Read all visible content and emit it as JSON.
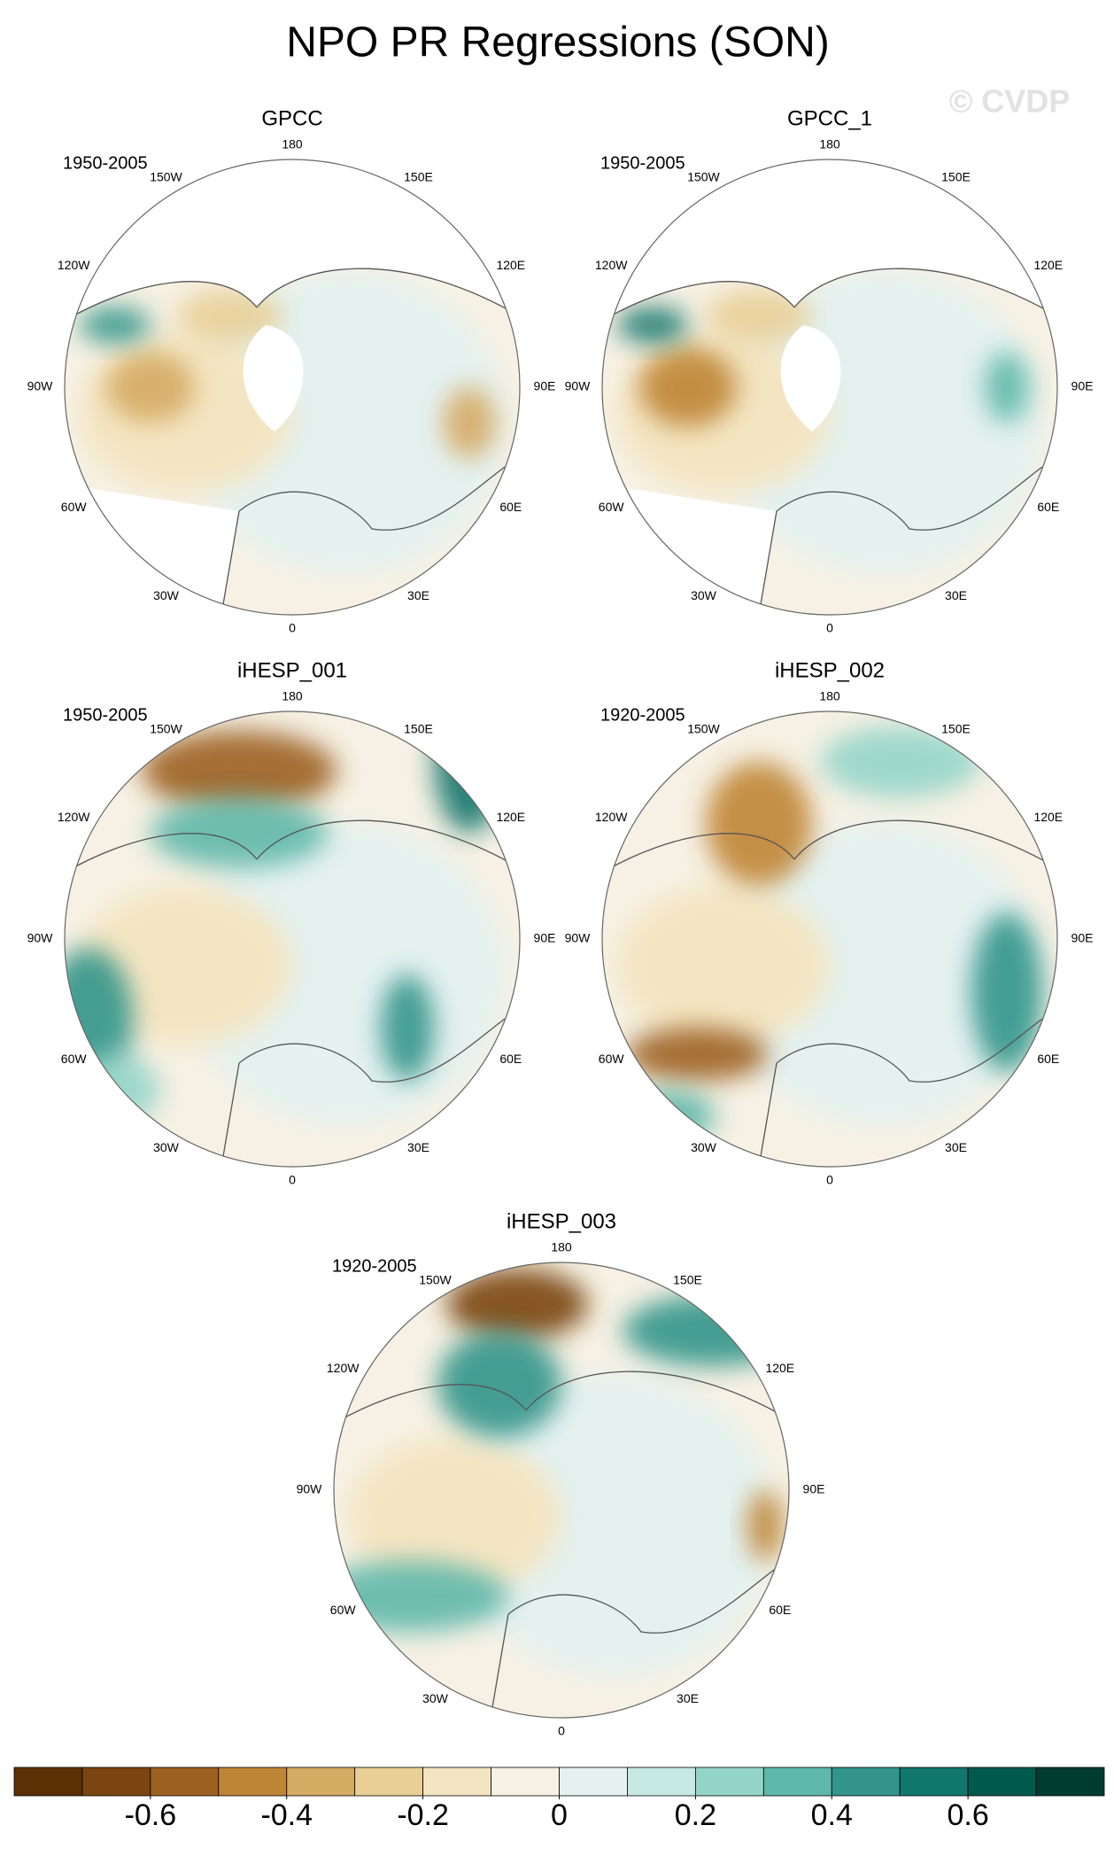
{
  "title": "NPO PR Regressions (SON)",
  "watermark": "© CVDP",
  "lon_labels": [
    "180",
    "150E",
    "120E",
    "90E",
    "60E",
    "30E",
    "0",
    "30W",
    "60W",
    "90W",
    "120W",
    "150W"
  ],
  "panels": [
    {
      "title": "GPCC",
      "period": "1950-2005"
    },
    {
      "title": "GPCC_1",
      "period": "1950-2005"
    },
    {
      "title": "iHESP_001",
      "period": "1950-2005"
    },
    {
      "title": "iHESP_002",
      "period": "1920-2005"
    },
    {
      "title": "iHESP_003",
      "period": "1920-2005"
    }
  ],
  "colorbar": {
    "xlim": [
      -0.8,
      0.8
    ],
    "colors": [
      "#5a3005",
      "#7a4510",
      "#9c6020",
      "#bf8536",
      "#d5aa63",
      "#e8cf95",
      "#f4e5c2",
      "#f6f1e4",
      "#e4f1ef",
      "#c6e9e3",
      "#94d5c9",
      "#5fb8aa",
      "#32948a",
      "#12776e",
      "#025a4f",
      "#003c30"
    ],
    "ticks": [
      -0.6,
      -0.4,
      -0.2,
      0,
      0.2,
      0.4,
      0.6
    ]
  }
}
